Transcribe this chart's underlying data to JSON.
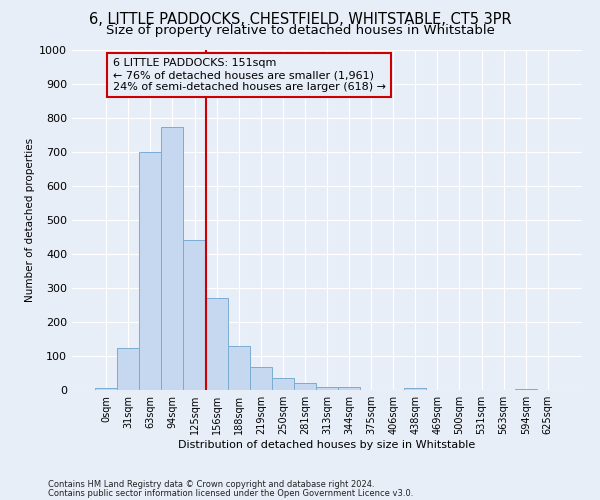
{
  "title1": "6, LITTLE PADDOCKS, CHESTFIELD, WHITSTABLE, CT5 3PR",
  "title2": "Size of property relative to detached houses in Whitstable",
  "xlabel": "Distribution of detached houses by size in Whitstable",
  "ylabel": "Number of detached properties",
  "bar_labels": [
    "0sqm",
    "31sqm",
    "63sqm",
    "94sqm",
    "125sqm",
    "156sqm",
    "188sqm",
    "219sqm",
    "250sqm",
    "281sqm",
    "313sqm",
    "344sqm",
    "375sqm",
    "406sqm",
    "438sqm",
    "469sqm",
    "500sqm",
    "531sqm",
    "563sqm",
    "594sqm",
    "625sqm"
  ],
  "bar_values": [
    5,
    125,
    700,
    775,
    440,
    270,
    130,
    68,
    35,
    20,
    10,
    10,
    0,
    0,
    5,
    0,
    0,
    0,
    0,
    3,
    0
  ],
  "bar_color": "#c5d8f0",
  "bar_edge_color": "#7aadd4",
  "vline_x_idx": 5,
  "vline_color": "#cc0000",
  "annotation_text": "6 LITTLE PADDOCKS: 151sqm\n← 76% of detached houses are smaller (1,961)\n24% of semi-detached houses are larger (618) →",
  "annotation_box_color": "#cc0000",
  "ylim": [
    0,
    1000
  ],
  "yticks": [
    0,
    100,
    200,
    300,
    400,
    500,
    600,
    700,
    800,
    900,
    1000
  ],
  "footer1": "Contains HM Land Registry data © Crown copyright and database right 2024.",
  "footer2": "Contains public sector information licensed under the Open Government Licence v3.0.",
  "bg_color": "#e8eef8",
  "grid_color": "#ffffff",
  "title1_fontsize": 10.5,
  "title2_fontsize": 9.5,
  "ann_fontsize": 8,
  "xlabel_fontsize": 8,
  "ylabel_fontsize": 7.5,
  "tick_fontsize": 7,
  "footer_fontsize": 6
}
